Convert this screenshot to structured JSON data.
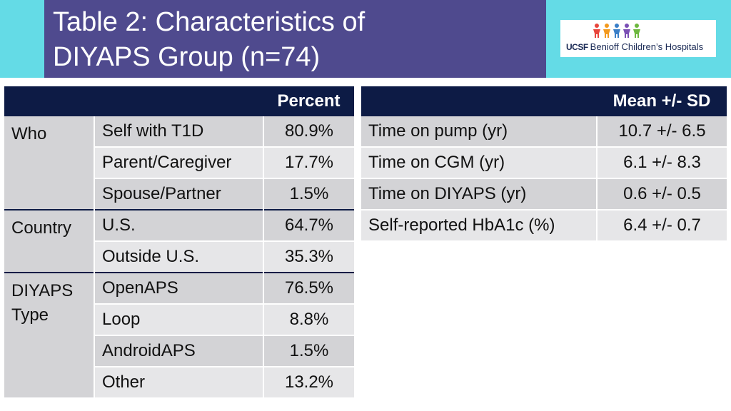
{
  "title": {
    "line1": "Table 2: Characteristics of",
    "line2": "DIYAPS Group (n=74)"
  },
  "logo": {
    "ucsf": "UCSF",
    "name": "Benioff Children’s Hospitals"
  },
  "colors": {
    "title_bg": "#4f4a8e",
    "band": "#64dbe6",
    "header_bg": "#0d1b45",
    "row_dark": "#d3d3d6",
    "row_light": "#e6e6e8"
  },
  "left_table": {
    "header": "Percent",
    "groups": [
      {
        "category": "Who",
        "rows": [
          {
            "label": "Self with T1D",
            "value": "80.9%"
          },
          {
            "label": "Parent/Caregiver",
            "value": "17.7%"
          },
          {
            "label": "Spouse/Partner",
            "value": "1.5%"
          }
        ]
      },
      {
        "category": "Country",
        "rows": [
          {
            "label": "U.S.",
            "value": "64.7%"
          },
          {
            "label": "Outside U.S.",
            "value": "35.3%"
          }
        ]
      },
      {
        "category": "DIYAPS Type",
        "rows": [
          {
            "label": "OpenAPS",
            "value": "76.5%"
          },
          {
            "label": "Loop",
            "value": "8.8%"
          },
          {
            "label": "AndroidAPS",
            "value": "1.5%"
          },
          {
            "label": "Other",
            "value": "13.2%"
          }
        ]
      }
    ]
  },
  "right_table": {
    "header": "Mean +/- SD",
    "rows": [
      {
        "label": "Time on pump (yr)",
        "value": "10.7 +/- 6.5"
      },
      {
        "label": "Time on CGM (yr)",
        "value": "6.1 +/- 8.3"
      },
      {
        "label": "Time on DIYAPS (yr)",
        "value": "0.6 +/- 0.5"
      },
      {
        "label": "Self-reported HbA1c (%)",
        "value": "6.4 +/- 0.7"
      }
    ]
  }
}
